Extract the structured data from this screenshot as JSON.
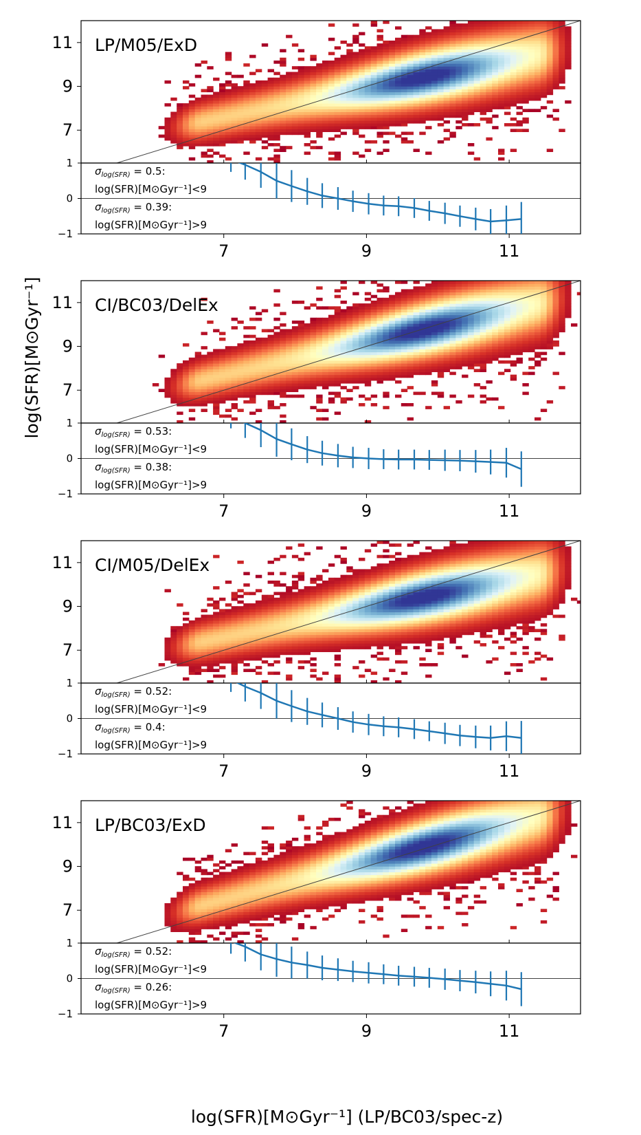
{
  "chart_data": {
    "type": "heatmap",
    "xlabel": "log(SFR)[M⊙Gyr⁻¹] (LP/BC03/spec-z)",
    "ylabel": "log(SFR)[M⊙Gyr⁻¹]",
    "xlim": [
      5,
      12
    ],
    "x_ticks": [
      "7",
      "9",
      "11"
    ],
    "main_ylim": [
      5.5,
      12
    ],
    "main_y_ticks": [
      "7",
      "9",
      "11"
    ],
    "resid_ylim": [
      -1,
      1
    ],
    "resid_y_ticks": [
      "1",
      "0",
      "−1"
    ],
    "residual_x": [
      7.1,
      7.3,
      7.52,
      7.74,
      7.95,
      8.17,
      8.38,
      8.6,
      8.81,
      9.03,
      9.24,
      9.45,
      9.67,
      9.88,
      10.1,
      10.31,
      10.53,
      10.74,
      10.96,
      11.17
    ],
    "panels": [
      {
        "label": "LP/M05/ExD",
        "ridge": {
          "x0": 7.0,
          "y0": 7.6,
          "x1": 11.6,
          "y1": 10.6
        },
        "sigma_low_prefix": "σ",
        "sigma_low_sub": "log(SFR)",
        "sigma_low_value": " = 0.5:",
        "range_low": "log(SFR)[M⊙Gyr⁻¹]<9",
        "sigma_high_prefix": "σ",
        "sigma_high_sub": "log(SFR)",
        "sigma_high_value": " = 0.39:",
        "range_high": "log(SFR)[M⊙Gyr⁻¹]>9",
        "residuals": [
          1.1,
          0.95,
          0.75,
          0.5,
          0.35,
          0.2,
          0.08,
          0.0,
          -0.08,
          -0.15,
          -0.2,
          -0.22,
          -0.27,
          -0.35,
          -0.42,
          -0.5,
          -0.58,
          -0.65,
          -0.62,
          -0.58
        ],
        "errors": [
          0.35,
          0.42,
          0.45,
          0.5,
          0.45,
          0.38,
          0.35,
          0.32,
          0.3,
          0.3,
          0.28,
          0.28,
          0.28,
          0.28,
          0.3,
          0.3,
          0.32,
          0.35,
          0.42,
          0.48
        ]
      },
      {
        "label": "CI/BC03/DelEx",
        "ridge": {
          "x0": 7.0,
          "y0": 7.7,
          "x1": 11.6,
          "y1": 11.1
        },
        "sigma_low_prefix": "σ",
        "sigma_low_sub": "log(SFR)",
        "sigma_low_value": " = 0.53:",
        "range_low": "log(SFR)[M⊙Gyr⁻¹]<9",
        "sigma_high_prefix": "σ",
        "sigma_high_sub": "log(SFR)",
        "sigma_high_value": " = 0.38:",
        "range_high": "log(SFR)[M⊙Gyr⁻¹]>9",
        "residuals": [
          1.2,
          1.0,
          0.8,
          0.55,
          0.4,
          0.25,
          0.15,
          0.08,
          0.03,
          0.0,
          -0.02,
          -0.03,
          -0.03,
          -0.04,
          -0.05,
          -0.06,
          -0.08,
          -0.1,
          -0.12,
          -0.3
        ],
        "errors": [
          0.35,
          0.42,
          0.48,
          0.5,
          0.45,
          0.38,
          0.35,
          0.33,
          0.3,
          0.3,
          0.28,
          0.28,
          0.28,
          0.28,
          0.3,
          0.3,
          0.32,
          0.35,
          0.42,
          0.5
        ]
      },
      {
        "label": "CI/M05/DelEx",
        "ridge": {
          "x0": 7.0,
          "y0": 7.6,
          "x1": 11.6,
          "y1": 10.6
        },
        "sigma_low_prefix": "σ",
        "sigma_low_sub": "log(SFR)",
        "sigma_low_value": " = 0.52:",
        "range_low": "log(SFR)[M⊙Gyr⁻¹]<9",
        "sigma_high_prefix": "σ",
        "sigma_high_sub": "log(SFR)",
        "sigma_high_value": " = 0.4:",
        "range_high": "log(SFR)[M⊙Gyr⁻¹]>9",
        "residuals": [
          1.1,
          0.9,
          0.72,
          0.5,
          0.35,
          0.2,
          0.1,
          0.0,
          -0.1,
          -0.17,
          -0.22,
          -0.25,
          -0.3,
          -0.36,
          -0.42,
          -0.48,
          -0.52,
          -0.55,
          -0.5,
          -0.55
        ],
        "errors": [
          0.35,
          0.42,
          0.45,
          0.5,
          0.45,
          0.38,
          0.35,
          0.32,
          0.3,
          0.3,
          0.28,
          0.28,
          0.28,
          0.28,
          0.3,
          0.3,
          0.32,
          0.35,
          0.42,
          0.48
        ]
      },
      {
        "label": "LP/BC03/ExD",
        "ridge": {
          "x0": 7.0,
          "y0": 7.5,
          "x1": 11.8,
          "y1": 11.6
        },
        "sigma_low_prefix": "σ",
        "sigma_low_sub": "log(SFR)",
        "sigma_low_value": " = 0.52:",
        "range_low": "log(SFR)[M⊙Gyr⁻¹]<9",
        "sigma_high_prefix": "σ",
        "sigma_high_sub": "log(SFR)",
        "sigma_high_value": " = 0.26:",
        "range_high": "log(SFR)[M⊙Gyr⁻¹]>9",
        "residuals": [
          1.05,
          0.9,
          0.68,
          0.55,
          0.45,
          0.38,
          0.3,
          0.25,
          0.2,
          0.16,
          0.12,
          0.08,
          0.05,
          0.02,
          -0.02,
          -0.06,
          -0.1,
          -0.15,
          -0.2,
          -0.3
        ],
        "errors": [
          0.35,
          0.42,
          0.45,
          0.5,
          0.45,
          0.38,
          0.35,
          0.32,
          0.3,
          0.3,
          0.28,
          0.28,
          0.28,
          0.28,
          0.3,
          0.3,
          0.32,
          0.35,
          0.42,
          0.48
        ]
      }
    ]
  },
  "colors": {
    "errorbar": "#1f77b4",
    "one_to_one_line": "#404040",
    "axes": "#000000",
    "heatmap_stops": [
      "#a50026",
      "#d73027",
      "#f46d43",
      "#fdae61",
      "#fee090",
      "#ffffbf",
      "#e0f3f8",
      "#abd9e9",
      "#74add1",
      "#4575b4",
      "#313695"
    ]
  }
}
